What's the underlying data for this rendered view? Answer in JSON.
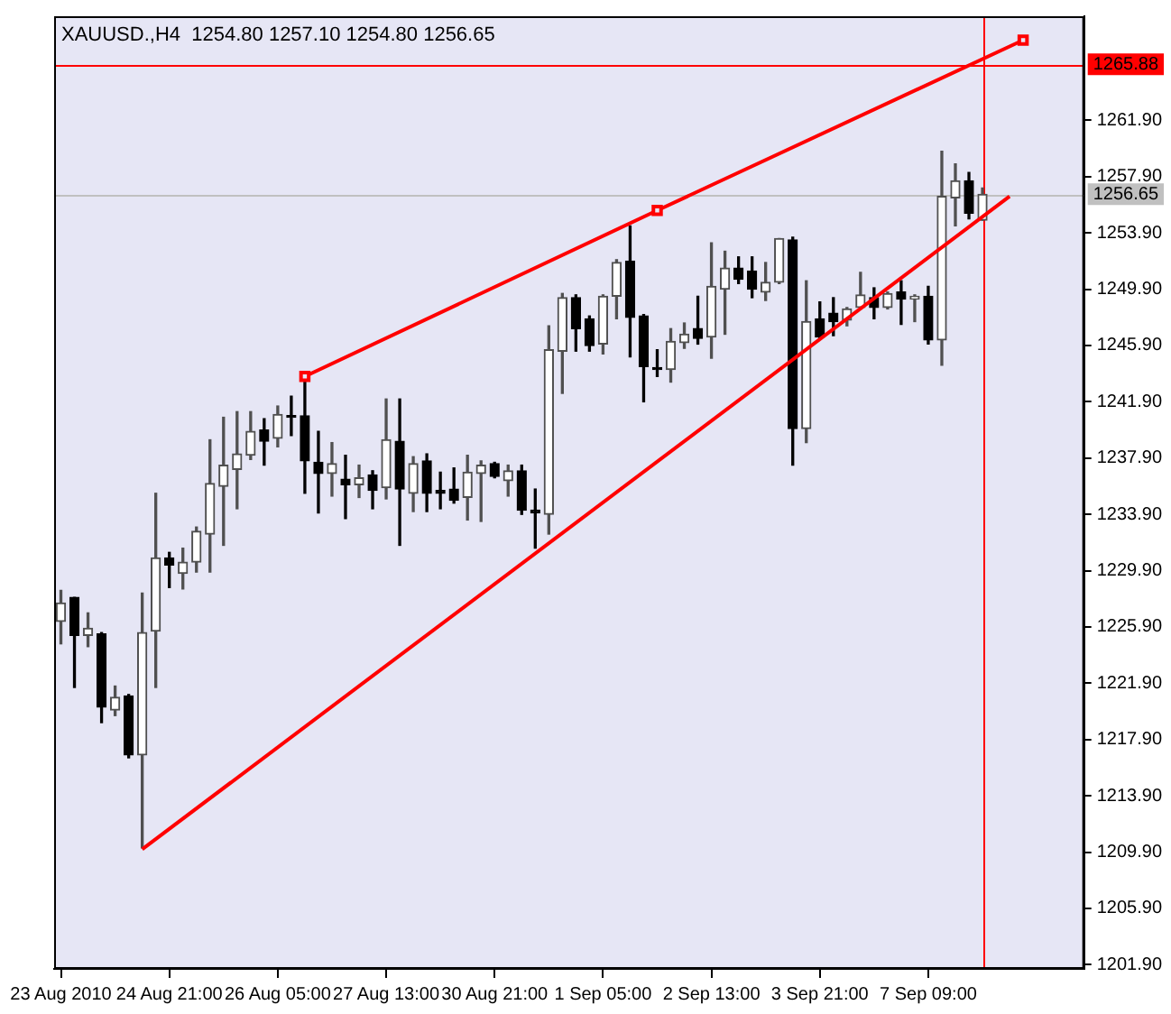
{
  "chart_data": {
    "type": "candlestick",
    "title": "XAUUSD.,H4  1254.80 1257.10 1254.80 1256.65",
    "categories": [
      "23 Aug 2010",
      null,
      null,
      null,
      null,
      null,
      null,
      null,
      "24 Aug 21:00",
      null,
      null,
      null,
      null,
      null,
      null,
      null,
      "26 Aug 05:00",
      null,
      null,
      null,
      null,
      null,
      null,
      null,
      "27 Aug 13:00",
      null,
      null,
      null,
      null,
      null,
      null,
      null,
      "30 Aug 21:00",
      null,
      null,
      null,
      null,
      null,
      null,
      null,
      "1 Sep 05:00",
      null,
      null,
      null,
      null,
      null,
      null,
      null,
      "2 Sep 13:00",
      null,
      null,
      null,
      null,
      null,
      null,
      null,
      "3 Sep 21:00",
      null,
      null,
      null,
      null,
      null,
      null,
      null,
      "7 Sep 09:00",
      null,
      null,
      null,
      null,
      null,
      null,
      null,
      null,
      null,
      null,
      null
    ],
    "ohlc": [
      [
        1226.3,
        1228.5,
        1224.7,
        1227.6
      ],
      [
        1228.0,
        1228.0,
        1221.6,
        1225.3
      ],
      [
        1225.3,
        1226.9,
        1224.5,
        1225.8
      ],
      [
        1225.4,
        1225.5,
        1219.1,
        1220.2
      ],
      [
        1220.0,
        1221.7,
        1219.6,
        1220.9
      ],
      [
        1221.0,
        1221.1,
        1216.6,
        1216.8
      ],
      [
        1216.8,
        1228.3,
        1210.2,
        1225.5
      ],
      [
        1225.6,
        1235.4,
        1221.6,
        1230.8
      ],
      [
        1230.8,
        1231.2,
        1228.7,
        1230.3
      ],
      [
        1229.7,
        1231.5,
        1228.6,
        1230.5
      ],
      [
        1230.5,
        1233.0,
        1229.8,
        1232.7
      ],
      [
        1232.5,
        1239.2,
        1229.8,
        1236.1
      ],
      [
        1235.9,
        1240.8,
        1231.7,
        1237.4
      ],
      [
        1237.1,
        1241.2,
        1234.3,
        1238.2
      ],
      [
        1238.1,
        1241.2,
        1237.8,
        1239.8
      ],
      [
        1239.9,
        1240.7,
        1237.4,
        1239.1
      ],
      [
        1239.3,
        1241.6,
        1238.7,
        1241.0
      ],
      [
        1240.9,
        1242.3,
        1239.5,
        1240.8
      ],
      [
        1240.9,
        1243.5,
        1235.4,
        1237.7
      ],
      [
        1237.6,
        1239.8,
        1234.0,
        1236.8
      ],
      [
        1236.8,
        1239.0,
        1235.2,
        1237.5
      ],
      [
        1236.4,
        1238.1,
        1233.6,
        1236.0
      ],
      [
        1236.0,
        1237.4,
        1235.1,
        1236.5
      ],
      [
        1236.7,
        1237.0,
        1234.3,
        1235.6
      ],
      [
        1235.8,
        1242.1,
        1235.0,
        1239.2
      ],
      [
        1239.1,
        1242.1,
        1231.7,
        1235.7
      ],
      [
        1235.4,
        1238.0,
        1234.1,
        1237.5
      ],
      [
        1237.7,
        1238.2,
        1234.1,
        1235.4
      ],
      [
        1235.6,
        1236.9,
        1234.3,
        1235.4
      ],
      [
        1235.7,
        1237.2,
        1234.7,
        1234.9
      ],
      [
        1235.1,
        1238.1,
        1233.5,
        1236.9
      ],
      [
        1236.8,
        1237.7,
        1233.4,
        1237.4
      ],
      [
        1237.5,
        1237.6,
        1236.5,
        1236.6
      ],
      [
        1236.3,
        1237.4,
        1235.2,
        1237.0
      ],
      [
        1237.0,
        1237.4,
        1233.9,
        1234.2
      ],
      [
        1234.2,
        1235.7,
        1231.5,
        1234.0
      ],
      [
        1233.9,
        1247.3,
        1232.5,
        1245.6
      ],
      [
        1245.5,
        1249.6,
        1242.5,
        1249.3
      ],
      [
        1249.3,
        1249.5,
        1245.5,
        1247.1
      ],
      [
        1247.8,
        1248.0,
        1245.5,
        1245.9
      ],
      [
        1246.0,
        1249.5,
        1245.3,
        1249.4
      ],
      [
        1249.4,
        1252.0,
        1247.8,
        1251.8
      ],
      [
        1251.9,
        1254.4,
        1245.1,
        1247.9
      ],
      [
        1248.0,
        1248.1,
        1241.9,
        1244.4
      ],
      [
        1244.3,
        1245.6,
        1243.7,
        1244.2
      ],
      [
        1244.2,
        1247.1,
        1243.3,
        1246.2
      ],
      [
        1246.1,
        1247.5,
        1245.7,
        1246.7
      ],
      [
        1247.1,
        1249.4,
        1246.0,
        1246.4
      ],
      [
        1246.5,
        1253.2,
        1245.0,
        1250.1
      ],
      [
        1249.9,
        1252.6,
        1246.7,
        1251.4
      ],
      [
        1251.4,
        1252.2,
        1250.3,
        1250.6
      ],
      [
        1251.2,
        1252.2,
        1249.3,
        1249.9
      ],
      [
        1249.7,
        1251.8,
        1249.1,
        1250.4
      ],
      [
        1250.4,
        1253.5,
        1250.3,
        1253.5
      ],
      [
        1253.4,
        1253.6,
        1237.4,
        1240.0
      ],
      [
        1240.0,
        1250.5,
        1239.0,
        1247.6
      ],
      [
        1247.8,
        1249.0,
        1246.4,
        1246.5
      ],
      [
        1248.2,
        1249.3,
        1246.6,
        1247.6
      ],
      [
        1247.7,
        1248.6,
        1247.3,
        1248.5
      ],
      [
        1248.6,
        1251.1,
        1248.5,
        1249.5
      ],
      [
        1249.3,
        1250.0,
        1247.8,
        1248.6
      ],
      [
        1248.6,
        1249.7,
        1248.5,
        1249.6
      ],
      [
        1249.7,
        1250.5,
        1247.4,
        1249.2
      ],
      [
        1249.2,
        1249.5,
        1247.6,
        1249.4
      ],
      [
        1249.4,
        1250.1,
        1246.0,
        1246.3
      ],
      [
        1246.3,
        1259.7,
        1244.5,
        1256.5
      ],
      [
        1256.4,
        1258.8,
        1254.4,
        1257.6
      ],
      [
        1257.6,
        1258.2,
        1254.9,
        1255.3
      ],
      [
        1254.8,
        1257.1,
        1254.8,
        1256.65
      ],
      null,
      null,
      null,
      null,
      null,
      null,
      null
    ],
    "series": [
      {
        "type": "line",
        "color": "#ff0000",
        "values": [
          null,
          null,
          null,
          null,
          null,
          null,
          1210.1,
          null,
          null,
          null,
          null,
          null,
          null,
          null,
          null,
          null,
          null,
          null,
          null,
          null,
          null,
          null,
          null,
          null,
          null,
          null,
          null,
          null,
          null,
          null,
          null,
          null,
          null,
          null,
          null,
          null,
          null,
          null,
          null,
          null,
          null,
          null,
          null,
          null,
          null,
          null,
          null,
          null,
          null,
          null,
          null,
          null,
          null,
          null,
          null,
          null,
          null,
          null,
          null,
          null,
          null,
          null,
          null,
          null,
          null,
          null,
          null,
          null,
          null,
          null,
          1256.5,
          null,
          null,
          null,
          null,
          null
        ]
      },
      {
        "type": "line",
        "color": "#ff0000",
        "marker": "square",
        "values": [
          null,
          null,
          null,
          null,
          null,
          null,
          null,
          null,
          null,
          null,
          null,
          null,
          null,
          null,
          null,
          null,
          null,
          null,
          1243.7,
          null,
          null,
          null,
          null,
          null,
          null,
          null,
          null,
          null,
          null,
          null,
          null,
          null,
          null,
          null,
          null,
          null,
          null,
          null,
          null,
          null,
          null,
          null,
          null,
          null,
          1255.5,
          null,
          null,
          null,
          null,
          null,
          null,
          null,
          null,
          null,
          null,
          null,
          null,
          null,
          null,
          null,
          null,
          null,
          null,
          null,
          null,
          null,
          null,
          null,
          null,
          null,
          null,
          1267.6,
          null,
          null,
          null,
          null
        ]
      }
    ],
    "ylim": [
      1201.6,
      1269.3
    ],
    "yticks": [
      {
        "value": 1201.9,
        "label": "1201.90"
      },
      {
        "value": 1205.9,
        "label": "1205.90"
      },
      {
        "value": 1209.9,
        "label": "1209.90"
      },
      {
        "value": 1213.9,
        "label": "1213.90"
      },
      {
        "value": 1217.9,
        "label": "1217.90"
      },
      {
        "value": 1221.9,
        "label": "1221.90"
      },
      {
        "value": 1225.9,
        "label": "1225.90"
      },
      {
        "value": 1229.9,
        "label": "1229.90"
      },
      {
        "value": 1233.9,
        "label": "1233.90"
      },
      {
        "value": 1237.9,
        "label": "1237.90"
      },
      {
        "value": 1241.9,
        "label": "1241.90"
      },
      {
        "value": 1245.9,
        "label": "1245.90"
      },
      {
        "value": 1249.9,
        "label": "1249.90"
      },
      {
        "value": 1253.9,
        "label": "1253.90"
      },
      {
        "value": 1257.9,
        "label": "1257.90"
      },
      {
        "value": 1261.9,
        "label": "1261.90"
      }
    ],
    "ref_lines": [
      {
        "axis": "y",
        "value": 1265.88,
        "label": "1265.88",
        "color": "#ff0000"
      },
      {
        "axis": "y",
        "value": 1256.65,
        "label": "1256.65",
        "color": "#c0c0c0"
      }
    ],
    "grid": false,
    "legend": false
  }
}
